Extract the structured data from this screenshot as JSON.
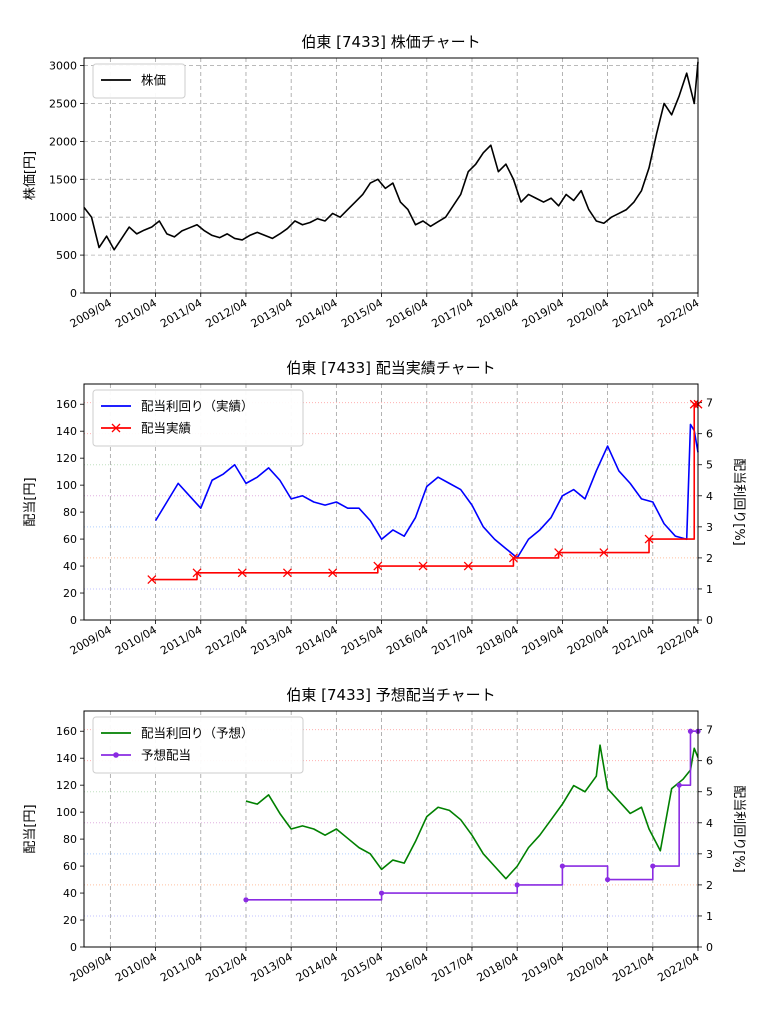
{
  "chart_data": [
    {
      "type": "line",
      "title": "伯東 [7433]  株価チャート",
      "ylabel": "株価[円]",
      "ylim": [
        0,
        3100
      ],
      "yticks": [
        0,
        500,
        1000,
        1500,
        2000,
        2500,
        3000
      ],
      "xlim": [
        "2008-09",
        "2022-04"
      ],
      "xtick_labels": [
        "2009/04",
        "2010/04",
        "2011/04",
        "2012/04",
        "2013/04",
        "2014/04",
        "2015/04",
        "2016/04",
        "2017/04",
        "2018/04",
        "2019/04",
        "2020/04",
        "2021/04",
        "2022/04"
      ],
      "legend": [
        "株価"
      ],
      "legend_position": "upper-left",
      "grid": true,
      "series": [
        {
          "name": "株価",
          "color": "#000000",
          "x": [
            "2008-09",
            "2008-11",
            "2009-01",
            "2009-03",
            "2009-05",
            "2009-07",
            "2009-09",
            "2009-11",
            "2010-01",
            "2010-03",
            "2010-05",
            "2010-07",
            "2010-09",
            "2010-11",
            "2011-01",
            "2011-03",
            "2011-05",
            "2011-07",
            "2011-09",
            "2011-11",
            "2012-01",
            "2012-03",
            "2012-05",
            "2012-07",
            "2012-09",
            "2012-11",
            "2013-01",
            "2013-03",
            "2013-05",
            "2013-07",
            "2013-09",
            "2013-11",
            "2014-01",
            "2014-03",
            "2014-05",
            "2014-07",
            "2014-09",
            "2014-11",
            "2015-01",
            "2015-03",
            "2015-05",
            "2015-07",
            "2015-09",
            "2015-11",
            "2016-01",
            "2016-03",
            "2016-05",
            "2016-07",
            "2016-09",
            "2016-11",
            "2017-01",
            "2017-03",
            "2017-05",
            "2017-07",
            "2017-09",
            "2017-11",
            "2018-01",
            "2018-03",
            "2018-05",
            "2018-07",
            "2018-09",
            "2018-11",
            "2019-01",
            "2019-03",
            "2019-05",
            "2019-07",
            "2019-09",
            "2019-11",
            "2020-01",
            "2020-03",
            "2020-05",
            "2020-07",
            "2020-09",
            "2020-11",
            "2021-01",
            "2021-03",
            "2021-05",
            "2021-07",
            "2021-09",
            "2021-11",
            "2022-01",
            "2022-03",
            "2022-04"
          ],
          "y": [
            1130,
            1000,
            600,
            750,
            570,
            720,
            870,
            780,
            830,
            870,
            950,
            780,
            740,
            820,
            860,
            900,
            820,
            760,
            730,
            780,
            720,
            700,
            760,
            800,
            760,
            720,
            780,
            850,
            950,
            900,
            930,
            980,
            950,
            1050,
            1000,
            1100,
            1200,
            1300,
            1450,
            1500,
            1380,
            1450,
            1200,
            1100,
            900,
            950,
            880,
            940,
            1000,
            1150,
            1300,
            1600,
            1700,
            1850,
            1950,
            1600,
            1700,
            1500,
            1200,
            1300,
            1250,
            1200,
            1250,
            1150,
            1300,
            1220,
            1350,
            1100,
            950,
            920,
            1000,
            1050,
            1100,
            1200,
            1350,
            1650,
            2100,
            2500,
            2350,
            2600,
            2900,
            2500,
            3050
          ]
        }
      ]
    },
    {
      "type": "line",
      "title": "伯東 [7433]  配当実績チャート",
      "ylabel": "配当[円]",
      "ylabel_right": "配当利回り[%]",
      "ylim": [
        0,
        175
      ],
      "ylim_right": [
        0,
        7.6
      ],
      "yticks": [
        0,
        20,
        40,
        60,
        80,
        100,
        120,
        140,
        160
      ],
      "yticks_right": [
        0,
        1,
        2,
        3,
        4,
        5,
        6,
        7
      ],
      "xlim": [
        "2008-09",
        "2022-04"
      ],
      "xtick_labels": [
        "2009/04",
        "2010/04",
        "2011/04",
        "2012/04",
        "2013/04",
        "2014/04",
        "2015/04",
        "2016/04",
        "2017/04",
        "2018/04",
        "2019/04",
        "2020/04",
        "2021/04",
        "2022/04"
      ],
      "legend": [
        "配当利回り（実績）",
        "配当実績"
      ],
      "legend_position": "upper-left",
      "grid": true,
      "series": [
        {
          "name": "配当利回り（実績）",
          "color": "#0000ff",
          "axis": "right",
          "x": [
            "2010-04",
            "2010-07",
            "2010-10",
            "2011-01",
            "2011-04",
            "2011-07",
            "2011-10",
            "2012-01",
            "2012-04",
            "2012-07",
            "2012-10",
            "2013-01",
            "2013-04",
            "2013-07",
            "2013-10",
            "2014-01",
            "2014-04",
            "2014-07",
            "2014-10",
            "2015-01",
            "2015-04",
            "2015-07",
            "2015-10",
            "2016-01",
            "2016-04",
            "2016-07",
            "2016-10",
            "2017-01",
            "2017-04",
            "2017-07",
            "2017-10",
            "2018-01",
            "2018-04",
            "2018-07",
            "2018-10",
            "2019-01",
            "2019-04",
            "2019-07",
            "2019-10",
            "2020-01",
            "2020-04",
            "2020-07",
            "2020-10",
            "2021-01",
            "2021-04",
            "2021-07",
            "2021-10",
            "2022-01",
            "2022-02",
            "2022-03",
            "2022-04"
          ],
          "y": [
            3.2,
            3.8,
            4.4,
            4.0,
            3.6,
            4.5,
            4.7,
            5.0,
            4.4,
            4.6,
            4.9,
            4.5,
            3.9,
            4.0,
            3.8,
            3.7,
            3.8,
            3.6,
            3.6,
            3.2,
            2.6,
            2.9,
            2.7,
            3.3,
            4.3,
            4.6,
            4.4,
            4.2,
            3.7,
            3.0,
            2.6,
            2.3,
            2.0,
            2.6,
            2.9,
            3.3,
            4.0,
            4.2,
            3.9,
            4.8,
            5.6,
            4.8,
            4.4,
            3.9,
            3.8,
            3.1,
            2.7,
            2.6,
            6.3,
            6.1,
            5.4
          ]
        },
        {
          "name": "配当実績",
          "color": "#ff0000",
          "axis": "left",
          "marker": "x",
          "x": [
            "2010-03",
            "2011-03",
            "2012-03",
            "2013-03",
            "2014-03",
            "2015-03",
            "2016-03",
            "2017-03",
            "2018-03",
            "2019-03",
            "2020-03",
            "2021-03",
            "2022-03",
            "2022-04"
          ],
          "y": [
            30,
            35,
            35,
            35,
            35,
            40,
            40,
            40,
            46,
            50,
            50,
            60,
            160,
            160
          ]
        }
      ]
    },
    {
      "type": "line",
      "title": "伯東 [7433]  予想配当チャート",
      "ylabel": "配当[円]",
      "ylabel_right": "配当利回り[%]",
      "ylim": [
        0,
        175
      ],
      "ylim_right": [
        0,
        7.6
      ],
      "yticks": [
        0,
        20,
        40,
        60,
        80,
        100,
        120,
        140,
        160
      ],
      "yticks_right": [
        0,
        1,
        2,
        3,
        4,
        5,
        6,
        7
      ],
      "xlim": [
        "2008-09",
        "2022-04"
      ],
      "xtick_labels": [
        "2009/04",
        "2010/04",
        "2011/04",
        "2012/04",
        "2013/04",
        "2014/04",
        "2015/04",
        "2016/04",
        "2017/04",
        "2018/04",
        "2019/04",
        "2020/04",
        "2021/04",
        "2022/04"
      ],
      "legend": [
        "配当利回り（予想）",
        "予想配当"
      ],
      "legend_position": "upper-left",
      "grid": true,
      "series": [
        {
          "name": "配当利回り（予想）",
          "color": "#008000",
          "axis": "right",
          "x": [
            "2012-04",
            "2012-07",
            "2012-10",
            "2013-01",
            "2013-04",
            "2013-07",
            "2013-10",
            "2014-01",
            "2014-04",
            "2014-07",
            "2014-10",
            "2015-01",
            "2015-04",
            "2015-07",
            "2015-10",
            "2016-01",
            "2016-04",
            "2016-07",
            "2016-10",
            "2017-01",
            "2017-04",
            "2017-07",
            "2017-10",
            "2018-01",
            "2018-04",
            "2018-07",
            "2018-10",
            "2019-01",
            "2019-04",
            "2019-07",
            "2019-10",
            "2020-01",
            "2020-02",
            "2020-04",
            "2020-07",
            "2020-10",
            "2021-01",
            "2021-03",
            "2021-06",
            "2021-09",
            "2021-12",
            "2022-02",
            "2022-03",
            "2022-04"
          ],
          "y": [
            4.7,
            4.6,
            4.9,
            4.3,
            3.8,
            3.9,
            3.8,
            3.6,
            3.8,
            3.5,
            3.2,
            3.0,
            2.5,
            2.8,
            2.7,
            3.4,
            4.2,
            4.5,
            4.4,
            4.1,
            3.6,
            3.0,
            2.6,
            2.2,
            2.6,
            3.2,
            3.6,
            4.1,
            4.6,
            5.2,
            5.0,
            5.5,
            6.5,
            5.1,
            4.7,
            4.3,
            4.5,
            3.8,
            3.1,
            5.1,
            5.4,
            5.7,
            6.4,
            6.1
          ]
        },
        {
          "name": "予想配当",
          "color": "#8a2be2",
          "axis": "left",
          "marker": "o",
          "x": [
            "2012-04",
            "2015-04",
            "2018-04",
            "2019-04",
            "2020-04",
            "2021-04",
            "2021-11",
            "2022-02",
            "2022-04"
          ],
          "y": [
            35,
            40,
            46,
            60,
            50,
            60,
            120,
            160,
            160
          ]
        }
      ]
    }
  ]
}
